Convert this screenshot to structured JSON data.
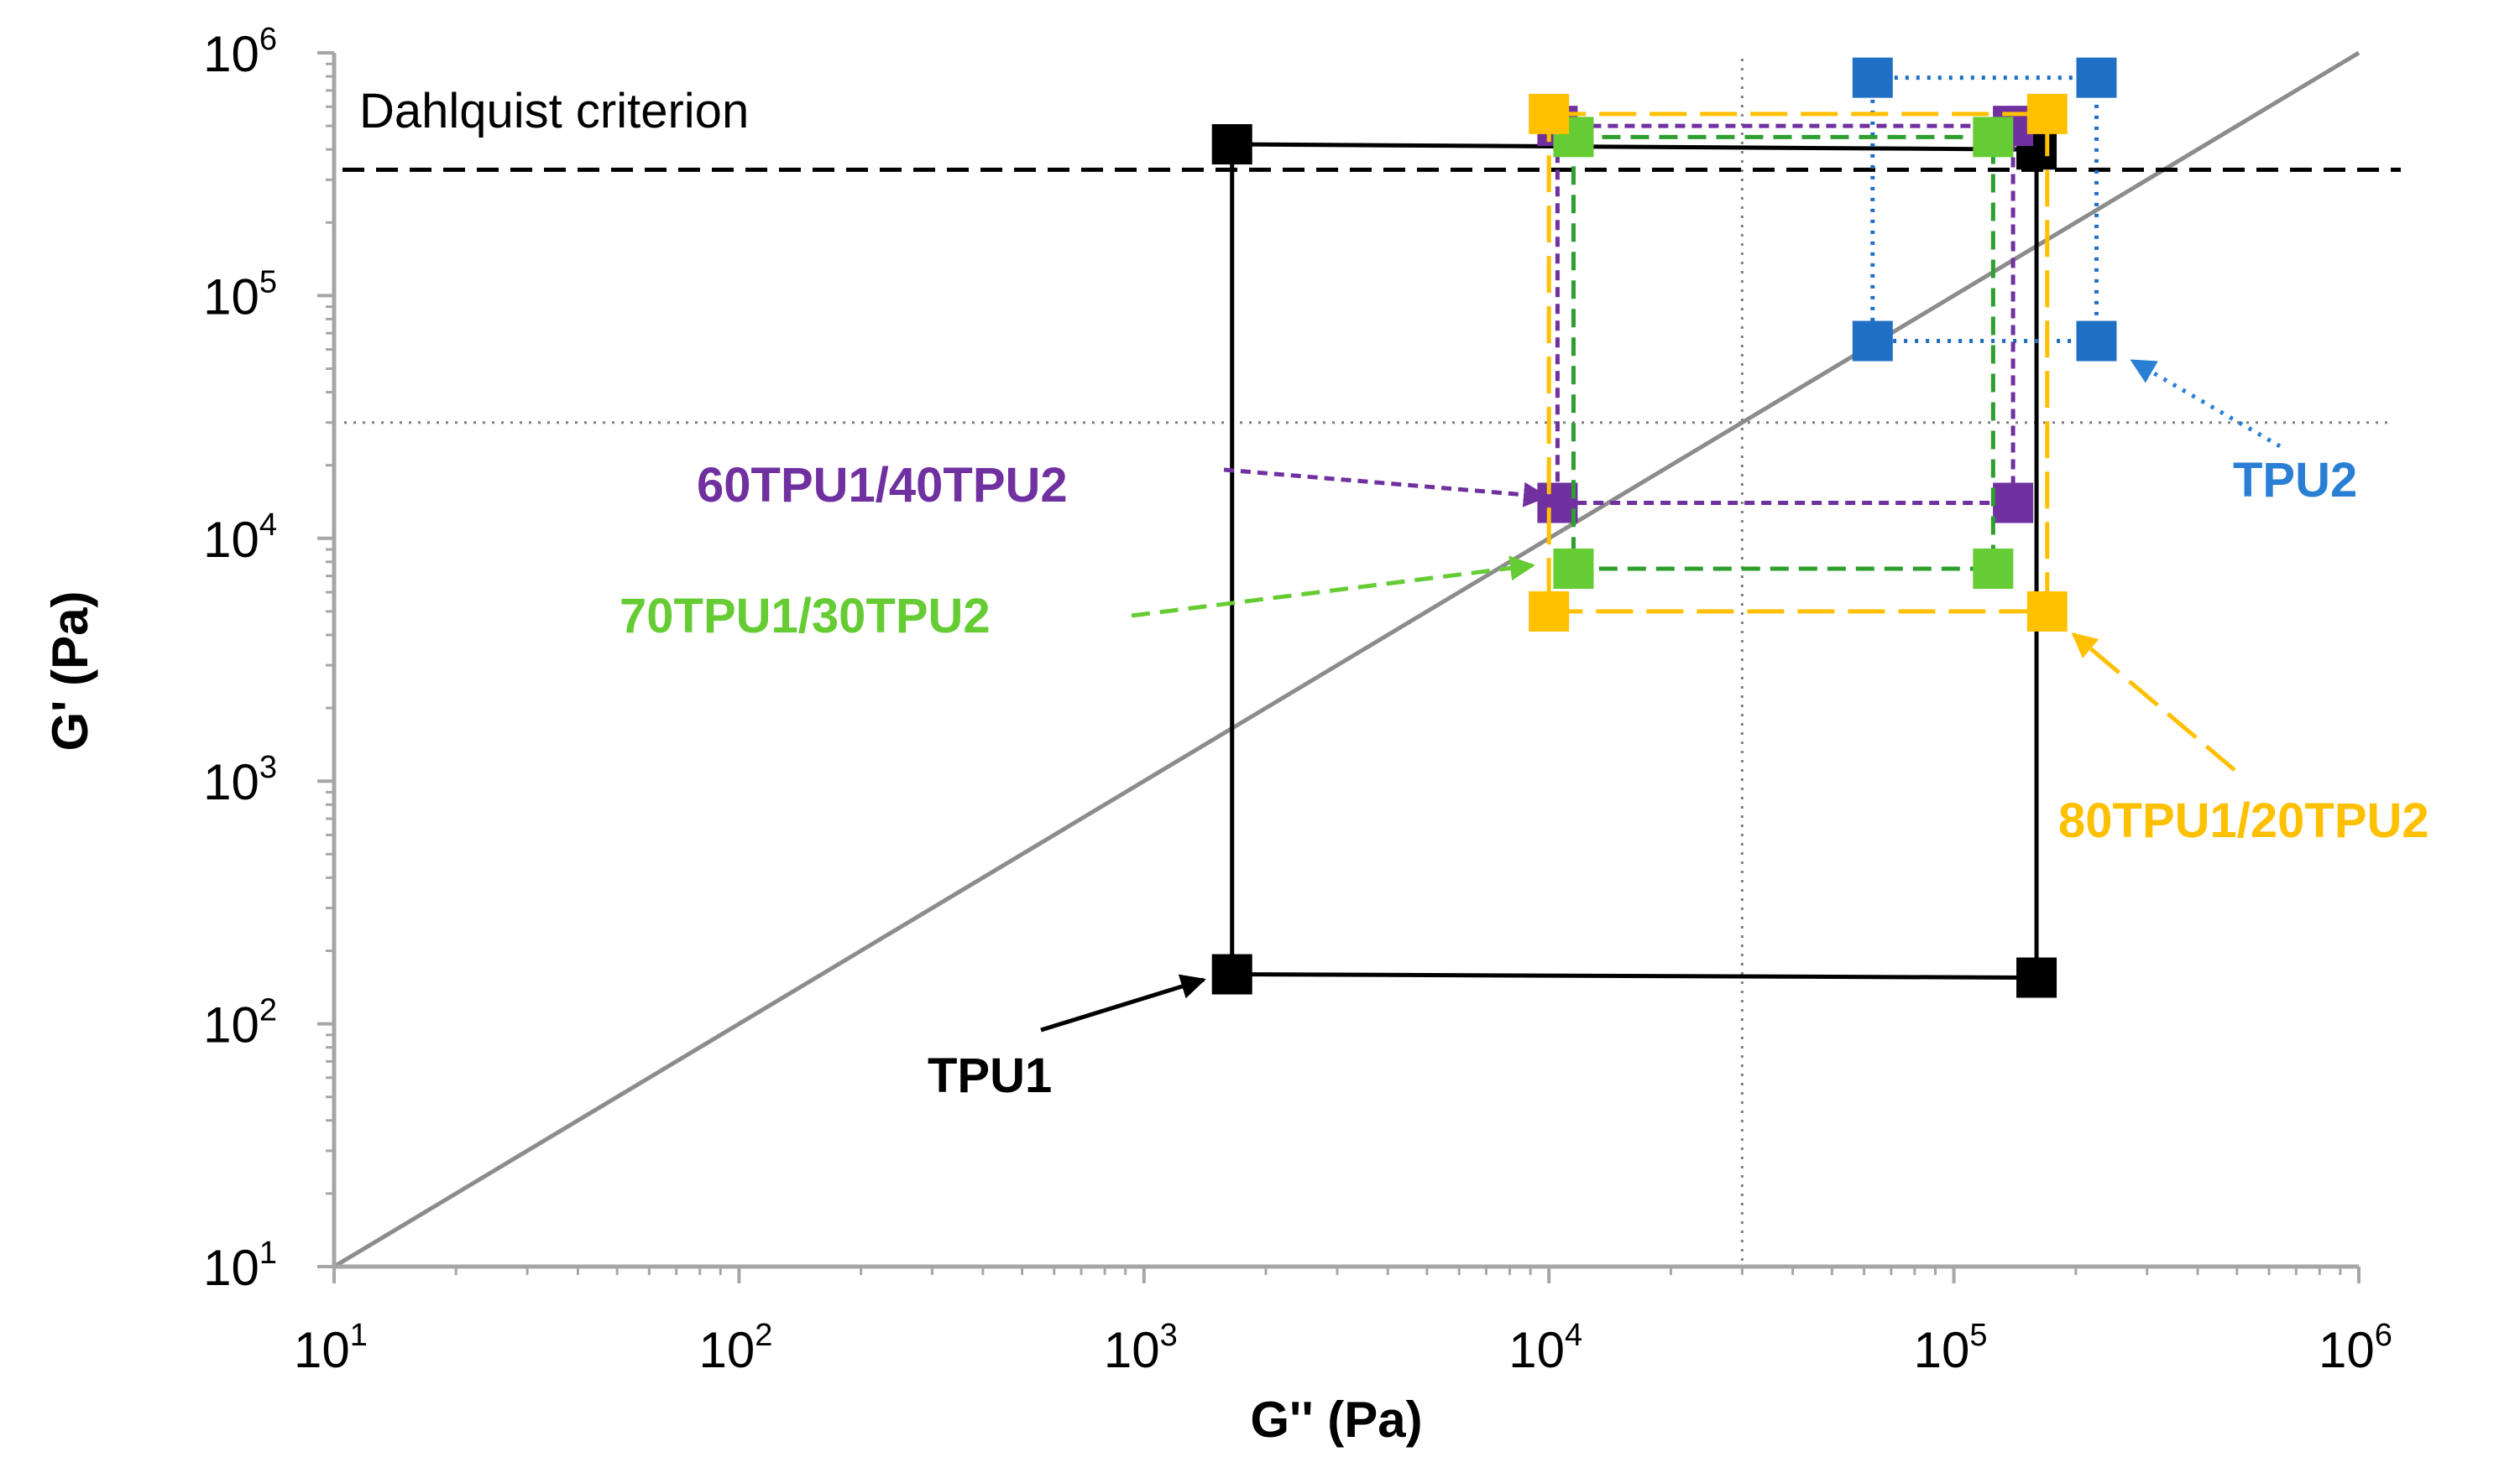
{
  "chart_data": {
    "type": "scatter",
    "title": "",
    "xlabel": "G'' (Pa)",
    "ylabel": "G' (Pa)",
    "xscale": "log",
    "yscale": "log",
    "xlim": [
      10,
      1000000
    ],
    "ylim": [
      10,
      1000000
    ],
    "x_ticks": [
      {
        "base": "10",
        "exp": "1"
      },
      {
        "base": "10",
        "exp": "2"
      },
      {
        "base": "10",
        "exp": "3"
      },
      {
        "base": "10",
        "exp": "4"
      },
      {
        "base": "10",
        "exp": "5"
      },
      {
        "base": "10",
        "exp": "6"
      }
    ],
    "y_ticks": [
      {
        "base": "10",
        "exp": "1"
      },
      {
        "base": "10",
        "exp": "2"
      },
      {
        "base": "10",
        "exp": "3"
      },
      {
        "base": "10",
        "exp": "4"
      },
      {
        "base": "10",
        "exp": "5"
      },
      {
        "base": "10",
        "exp": "6"
      }
    ],
    "reference_lines": {
      "dahlquist": {
        "label": "Dahlquist criterion",
        "y": 330000,
        "color": "#000000"
      },
      "hline_dotted": {
        "y": 30000,
        "color": "#7f7f7f"
      },
      "vline_dotted": {
        "x": 30000,
        "color": "#7f7f7f"
      },
      "diagonal": {
        "from": [
          10,
          10
        ],
        "to": [
          1000000,
          1000000
        ],
        "color": "#8c8c8c"
      }
    },
    "series": [
      {
        "name": "TPU1",
        "label": "TPU1",
        "color": "#000000",
        "label_color": "#000000",
        "dash": "none",
        "points": [
          [
            1650,
            420000
          ],
          [
            160000,
            400000
          ],
          [
            160000,
            155
          ],
          [
            1650,
            160
          ]
        ]
      },
      {
        "name": "TPU2",
        "label": "TPU2",
        "color": "#1f6fc5",
        "label_color": "#2a7fd4",
        "dash": "dotted",
        "points": [
          [
            63000,
            790000
          ],
          [
            225000,
            790000
          ],
          [
            225000,
            65000
          ],
          [
            63000,
            65000
          ]
        ]
      },
      {
        "name": "60TPU1/40TPU2",
        "label": "60TPU1/40TPU2",
        "color": "#7030a0",
        "label_color": "#7030a0",
        "dash": "short",
        "points": [
          [
            10500,
            500000
          ],
          [
            140000,
            500000
          ],
          [
            140000,
            14000
          ],
          [
            10500,
            14000
          ]
        ]
      },
      {
        "name": "70TPU1/30TPU2",
        "label": "70TPU1/30TPU2",
        "color": "#66cc33",
        "label_color": "#66cc33",
        "dash": "medium",
        "lineColor": "#2e9e2e",
        "points": [
          [
            11500,
            450000
          ],
          [
            125000,
            450000
          ],
          [
            125000,
            7500
          ],
          [
            11500,
            7500
          ]
        ]
      },
      {
        "name": "80TPU1/20TPU2",
        "label": "80TPU1/20TPU2",
        "color": "#ffc000",
        "label_color": "#ffc000",
        "dash": "long",
        "points": [
          [
            10000,
            560000
          ],
          [
            170000,
            560000
          ],
          [
            170000,
            5000
          ],
          [
            10000,
            5000
          ]
        ]
      }
    ]
  }
}
